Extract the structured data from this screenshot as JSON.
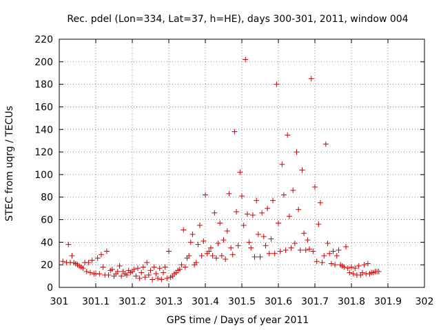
{
  "chart_data": {
    "type": "scatter",
    "title": "Rec. pdel (Lon=334, Lat=37, h=HE), days 300-301, 2011, window 004",
    "xlabel": "GPS time / Days of year 2011",
    "ylabel": "STEC from uqrg / TECUs",
    "xlim": [
      301,
      302
    ],
    "ylim": [
      0,
      220
    ],
    "x_ticks": [
      301,
      301.1,
      301.2,
      301.3,
      301.4,
      301.5,
      301.6,
      301.7,
      301.8,
      301.9,
      302
    ],
    "x_tick_labels": [
      "301",
      "301.1",
      "301.2",
      "301.3",
      "301.4",
      "301.5",
      "301.6",
      "301.7",
      "301.8",
      "301.9",
      "302"
    ],
    "y_ticks": [
      0,
      20,
      40,
      60,
      80,
      100,
      120,
      140,
      160,
      180,
      200,
      220
    ],
    "y_tick_labels": [
      "0",
      "20",
      "40",
      "60",
      "80",
      "100",
      "120",
      "140",
      "160",
      "180",
      "200",
      "220"
    ],
    "grid": true,
    "marker": "plus",
    "marker_color": "#cc0000",
    "series": [
      {
        "name": "STEC",
        "points": [
          [
            301.01,
            23
          ],
          [
            301.02,
            22
          ],
          [
            301.025,
            38
          ],
          [
            301.03,
            22
          ],
          [
            301.035,
            28
          ],
          [
            301.04,
            22
          ],
          [
            301.045,
            21
          ],
          [
            301.05,
            20
          ],
          [
            301.055,
            19
          ],
          [
            301.06,
            18
          ],
          [
            301.065,
            17
          ],
          [
            301.07,
            22
          ],
          [
            301.075,
            14
          ],
          [
            301.08,
            22
          ],
          [
            301.085,
            13
          ],
          [
            301.09,
            24
          ],
          [
            301.095,
            12
          ],
          [
            301.1,
            12
          ],
          [
            301.105,
            26
          ],
          [
            301.11,
            12
          ],
          [
            301.115,
            29
          ],
          [
            301.12,
            18
          ],
          [
            301.125,
            11
          ],
          [
            301.13,
            32
          ],
          [
            301.135,
            11
          ],
          [
            301.14,
            15
          ],
          [
            301.145,
            16
          ],
          [
            301.15,
            10
          ],
          [
            301.155,
            12
          ],
          [
            301.16,
            14
          ],
          [
            301.165,
            19
          ],
          [
            301.17,
            10
          ],
          [
            301.175,
            14
          ],
          [
            301.18,
            12
          ],
          [
            301.185,
            11
          ],
          [
            301.19,
            15
          ],
          [
            301.195,
            13
          ],
          [
            301.2,
            14
          ],
          [
            301.205,
            16
          ],
          [
            301.21,
            10
          ],
          [
            301.215,
            17
          ],
          [
            301.22,
            8
          ],
          [
            301.225,
            13
          ],
          [
            301.23,
            18
          ],
          [
            301.235,
            9
          ],
          [
            301.24,
            22
          ],
          [
            301.245,
            11
          ],
          [
            301.25,
            15
          ],
          [
            301.255,
            7
          ],
          [
            301.26,
            18
          ],
          [
            301.265,
            12
          ],
          [
            301.27,
            8
          ],
          [
            301.275,
            17
          ],
          [
            301.28,
            7
          ],
          [
            301.285,
            13
          ],
          [
            301.29,
            18
          ],
          [
            301.295,
            8
          ],
          [
            301.3,
            32
          ],
          [
            301.305,
            9
          ],
          [
            301.31,
            10
          ],
          [
            301.315,
            12
          ],
          [
            301.32,
            13
          ],
          [
            301.325,
            15
          ],
          [
            301.33,
            16
          ],
          [
            301.335,
            20
          ],
          [
            301.34,
            51
          ],
          [
            301.345,
            18
          ],
          [
            301.35,
            26
          ],
          [
            301.355,
            28
          ],
          [
            301.36,
            40
          ],
          [
            301.365,
            47
          ],
          [
            301.37,
            20
          ],
          [
            301.375,
            22
          ],
          [
            301.38,
            38
          ],
          [
            301.385,
            55
          ],
          [
            301.39,
            28
          ],
          [
            301.395,
            41
          ],
          [
            301.4,
            82
          ],
          [
            301.405,
            30
          ],
          [
            301.41,
            32
          ],
          [
            301.415,
            35
          ],
          [
            301.42,
            28
          ],
          [
            301.425,
            66
          ],
          [
            301.43,
            26
          ],
          [
            301.435,
            39
          ],
          [
            301.44,
            57
          ],
          [
            301.445,
            28
          ],
          [
            301.45,
            42
          ],
          [
            301.455,
            25
          ],
          [
            301.46,
            50
          ],
          [
            301.465,
            83
          ],
          [
            301.47,
            35
          ],
          [
            301.475,
            29
          ],
          [
            301.48,
            138
          ],
          [
            301.485,
            67
          ],
          [
            301.49,
            37
          ],
          [
            301.495,
            102
          ],
          [
            301.5,
            81
          ],
          [
            301.505,
            55
          ],
          [
            301.51,
            202
          ],
          [
            301.515,
            65
          ],
          [
            301.52,
            40
          ],
          [
            301.525,
            35
          ],
          [
            301.53,
            64
          ],
          [
            301.535,
            27
          ],
          [
            301.54,
            77
          ],
          [
            301.545,
            47
          ],
          [
            301.55,
            27
          ],
          [
            301.555,
            66
          ],
          [
            301.56,
            45
          ],
          [
            301.565,
            37
          ],
          [
            301.57,
            70
          ],
          [
            301.575,
            30
          ],
          [
            301.58,
            43
          ],
          [
            301.585,
            77
          ],
          [
            301.59,
            30
          ],
          [
            301.595,
            180
          ],
          [
            301.6,
            57
          ],
          [
            301.605,
            32
          ],
          [
            301.61,
            109
          ],
          [
            301.615,
            82
          ],
          [
            301.62,
            33
          ],
          [
            301.625,
            135
          ],
          [
            301.63,
            63
          ],
          [
            301.635,
            35
          ],
          [
            301.64,
            86
          ],
          [
            301.645,
            39
          ],
          [
            301.65,
            120
          ],
          [
            301.655,
            69
          ],
          [
            301.66,
            33
          ],
          [
            301.665,
            104
          ],
          [
            301.67,
            48
          ],
          [
            301.675,
            33
          ],
          [
            301.68,
            42
          ],
          [
            301.685,
            34
          ],
          [
            301.69,
            185
          ],
          [
            301.695,
            32
          ],
          [
            301.7,
            89
          ],
          [
            301.705,
            23
          ],
          [
            301.71,
            56
          ],
          [
            301.715,
            75
          ],
          [
            301.72,
            22
          ],
          [
            301.725,
            28
          ],
          [
            301.73,
            127
          ],
          [
            301.735,
            39
          ],
          [
            301.74,
            30
          ],
          [
            301.745,
            21
          ],
          [
            301.75,
            32
          ],
          [
            301.755,
            20
          ],
          [
            301.76,
            28
          ],
          [
            301.765,
            33
          ],
          [
            301.77,
            20
          ],
          [
            301.775,
            19
          ],
          [
            301.78,
            18
          ],
          [
            301.785,
            36
          ],
          [
            301.79,
            17
          ],
          [
            301.795,
            13
          ],
          [
            301.8,
            18
          ],
          [
            301.805,
            12
          ],
          [
            301.81,
            17
          ],
          [
            301.815,
            11
          ],
          [
            301.82,
            19
          ],
          [
            301.825,
            11
          ],
          [
            301.83,
            13
          ],
          [
            301.835,
            20
          ],
          [
            301.84,
            12
          ],
          [
            301.845,
            21
          ],
          [
            301.85,
            12
          ],
          [
            301.855,
            13
          ],
          [
            301.86,
            13
          ],
          [
            301.865,
            14
          ],
          [
            301.87,
            14
          ],
          [
            301.875,
            14
          ]
        ]
      }
    ]
  }
}
